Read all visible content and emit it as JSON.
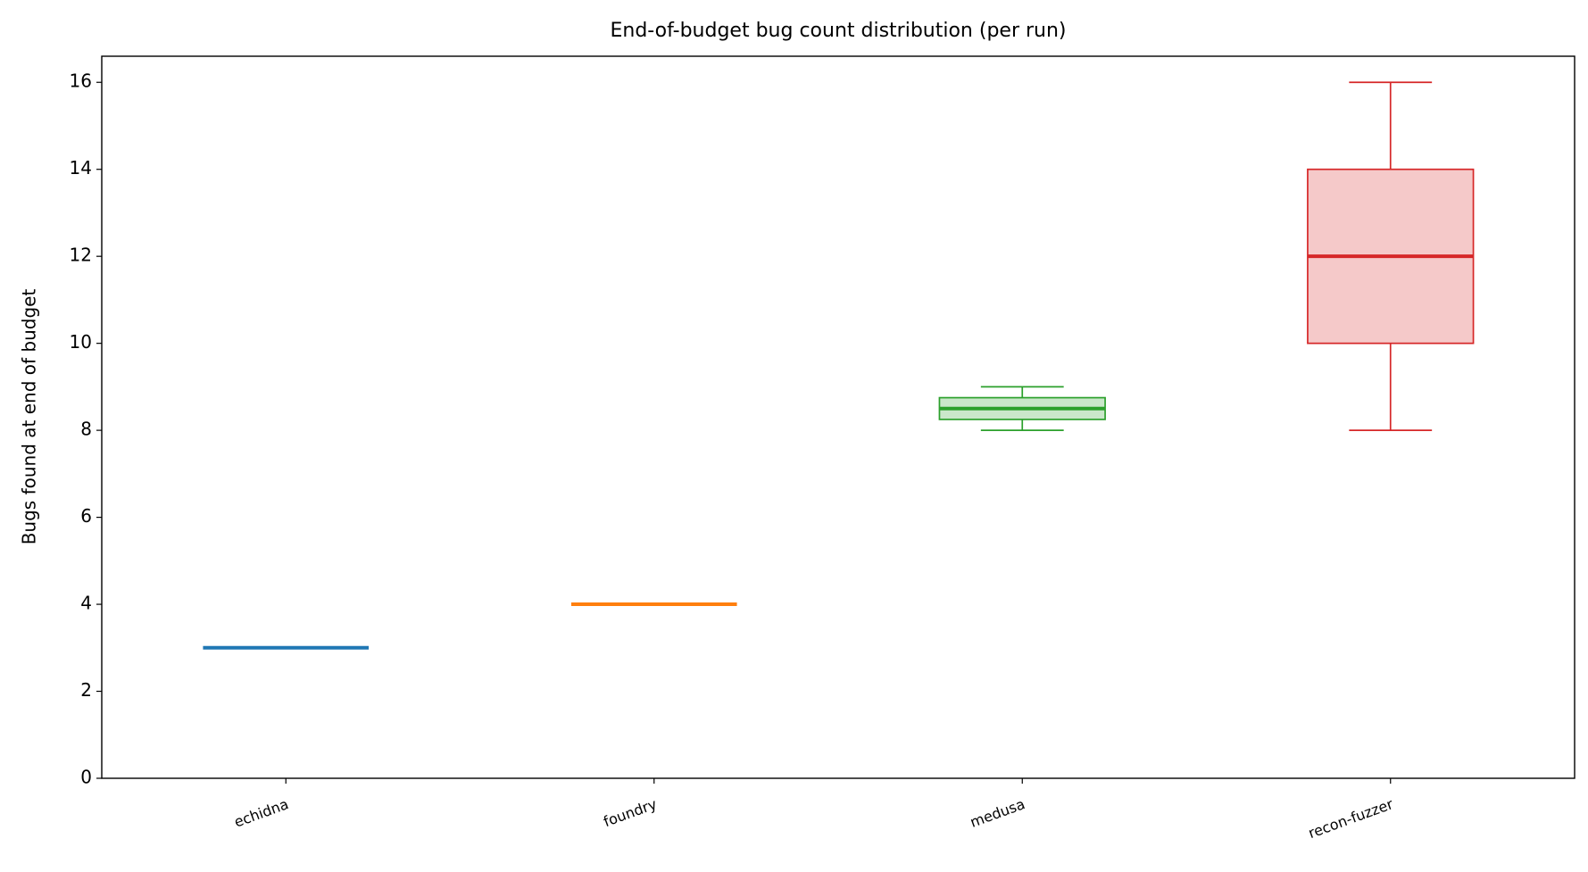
{
  "chart_data": {
    "type": "box",
    "title": "End-of-budget bug count distribution (per run)",
    "y_label": "Bugs found at end of budget",
    "categories": [
      "echidna",
      "foundry",
      "medusa",
      "recon-fuzzer"
    ],
    "colors": [
      "#1f77b4",
      "#ff7f0e",
      "#2ca02c",
      "#d62728"
    ],
    "boxes": [
      {
        "min": 3,
        "q1": 3,
        "median": 3,
        "q3": 3,
        "max": 3
      },
      {
        "min": 4,
        "q1": 4,
        "median": 4,
        "q3": 4,
        "max": 4
      },
      {
        "min": 8,
        "q1": 8.25,
        "median": 8.5,
        "q3": 8.75,
        "max": 9
      },
      {
        "min": 8,
        "q1": 10,
        "median": 12,
        "q3": 14,
        "max": 16
      }
    ],
    "ylim": [
      0,
      16.6
    ],
    "yticks": [
      0,
      2,
      4,
      6,
      8,
      10,
      12,
      14,
      16
    ]
  }
}
